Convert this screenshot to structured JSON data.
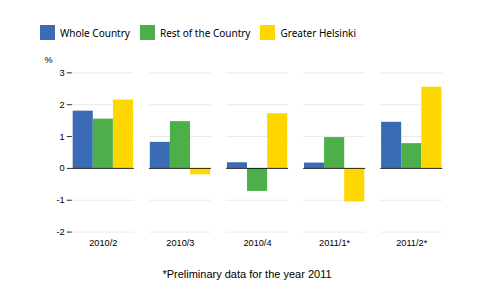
{
  "chart_data": {
    "type": "bar",
    "categories": [
      "2010/2",
      "2010/3",
      "2010/4",
      "2011/1*",
      "2011/2*"
    ],
    "series": [
      {
        "name": "Whole Country",
        "color": "#3A6CB5",
        "values": [
          1.8,
          0.82,
          0.18,
          0.17,
          1.45
        ]
      },
      {
        "name": "Rest of the Country",
        "color": "#4DAF4A",
        "values": [
          1.55,
          1.47,
          -0.72,
          0.97,
          0.78
        ]
      },
      {
        "name": "Greater Helsinki",
        "color": "#FFD700",
        "values": [
          2.15,
          -0.2,
          1.72,
          -1.05,
          2.55
        ]
      }
    ],
    "ylabel": "%",
    "ylim": [
      -2,
      3
    ],
    "yticks": [
      -2,
      -1,
      0,
      1,
      2,
      3
    ],
    "grid": true,
    "legend": "top",
    "footnote": "*Preliminary data for the year 2011"
  }
}
